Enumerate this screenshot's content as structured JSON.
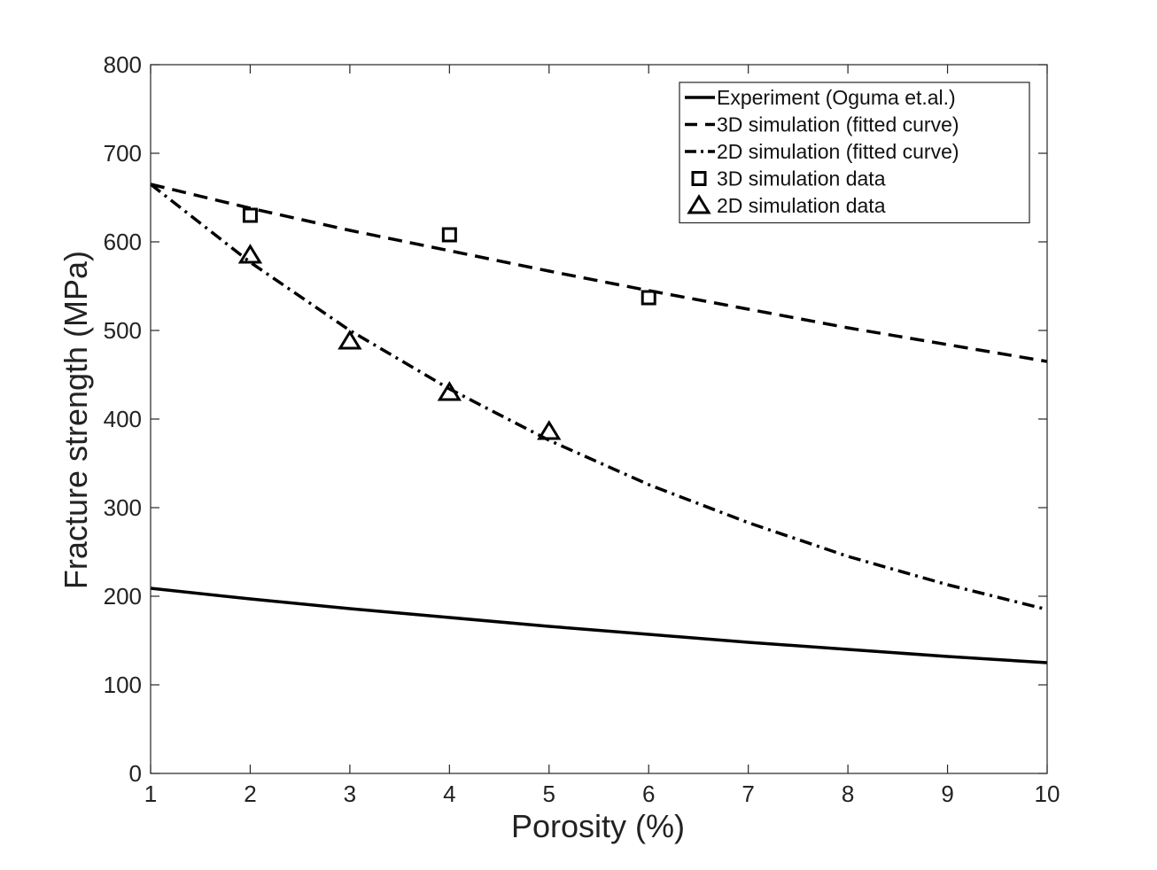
{
  "chart_data": {
    "type": "line",
    "xlabel": "Porosity (%)",
    "ylabel": "Fracture strength (MPa)",
    "xlim": [
      1,
      10
    ],
    "ylim": [
      0,
      800
    ],
    "xticks": [
      1,
      2,
      3,
      4,
      5,
      6,
      7,
      8,
      9,
      10
    ],
    "yticks": [
      0,
      100,
      200,
      300,
      400,
      500,
      600,
      700,
      800
    ],
    "grid": false,
    "legend_position": "top-right",
    "series": [
      {
        "name": "Experiment (Oguma et.al.)",
        "style": "solid",
        "marker": "none",
        "color": "#000000",
        "x": [
          1,
          2,
          3,
          4,
          5,
          6,
          7,
          8,
          9,
          10
        ],
        "y": [
          209,
          197,
          186,
          176,
          166,
          157,
          148,
          140,
          132,
          125
        ]
      },
      {
        "name": "3D simulation (fitted curve)",
        "style": "dashed",
        "marker": "none",
        "color": "#000000",
        "x": [
          1,
          2,
          3,
          4,
          5,
          6,
          7,
          8,
          9,
          10
        ],
        "y": [
          665,
          638,
          613,
          590,
          567,
          545,
          524,
          503,
          484,
          465
        ]
      },
      {
        "name": "2D simulation (fitted curve)",
        "style": "dashdot",
        "marker": "none",
        "color": "#000000",
        "x": [
          1,
          2,
          3,
          4,
          5,
          6,
          7,
          8,
          9,
          10
        ],
        "y": [
          665,
          577,
          500,
          434,
          376,
          326,
          283,
          245,
          213,
          185
        ]
      },
      {
        "name": "3D simulation data",
        "style": "none",
        "marker": "square",
        "color": "#000000",
        "x": [
          2,
          4,
          6
        ],
        "y": [
          630,
          608,
          537
        ]
      },
      {
        "name": "2D simulation data",
        "style": "none",
        "marker": "triangle",
        "color": "#000000",
        "x": [
          2,
          3,
          4,
          5
        ],
        "y": [
          585,
          488,
          430,
          386
        ]
      }
    ]
  }
}
